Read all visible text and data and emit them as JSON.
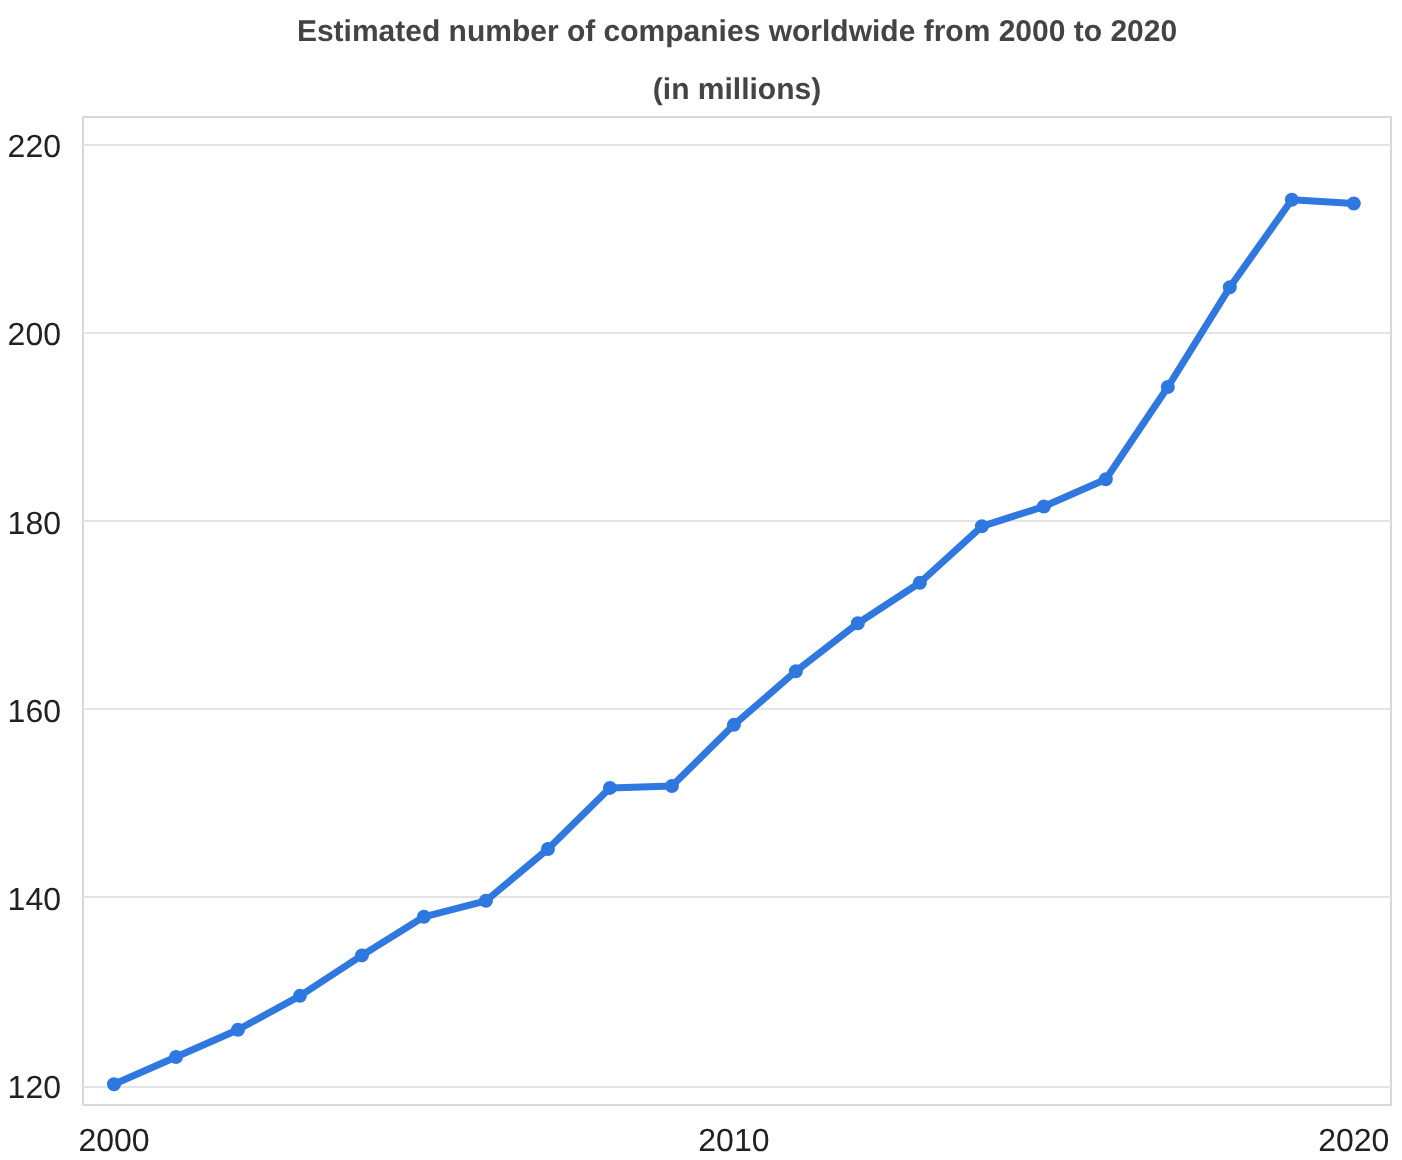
{
  "chart_data": {
    "type": "line",
    "title": "Estimated number of companies worldwide from 2000 to 2020",
    "subtitle": "(in millions)",
    "x": [
      2000,
      2001,
      2002,
      2003,
      2004,
      2005,
      2006,
      2007,
      2008,
      2009,
      2010,
      2011,
      2012,
      2013,
      2014,
      2015,
      2016,
      2017,
      2018,
      2019,
      2020
    ],
    "series": [
      {
        "color": "#2e78e0",
        "values": [
          120.2,
          123.1,
          126.0,
          129.6,
          133.9,
          138.0,
          139.7,
          145.2,
          151.7,
          151.9,
          158.4,
          164.1,
          169.2,
          173.5,
          179.5,
          181.6,
          184.5,
          194.3,
          204.9,
          214.2,
          213.8
        ]
      }
    ],
    "xlim": [
      1999.5,
      2020.6
    ],
    "xticks": [
      2000,
      2010,
      2020
    ],
    "ylim": [
      118,
      223
    ],
    "yticks": [
      120,
      140,
      160,
      180,
      200,
      220
    ],
    "grid": "y",
    "marker": "circle",
    "line_style": "solid"
  }
}
